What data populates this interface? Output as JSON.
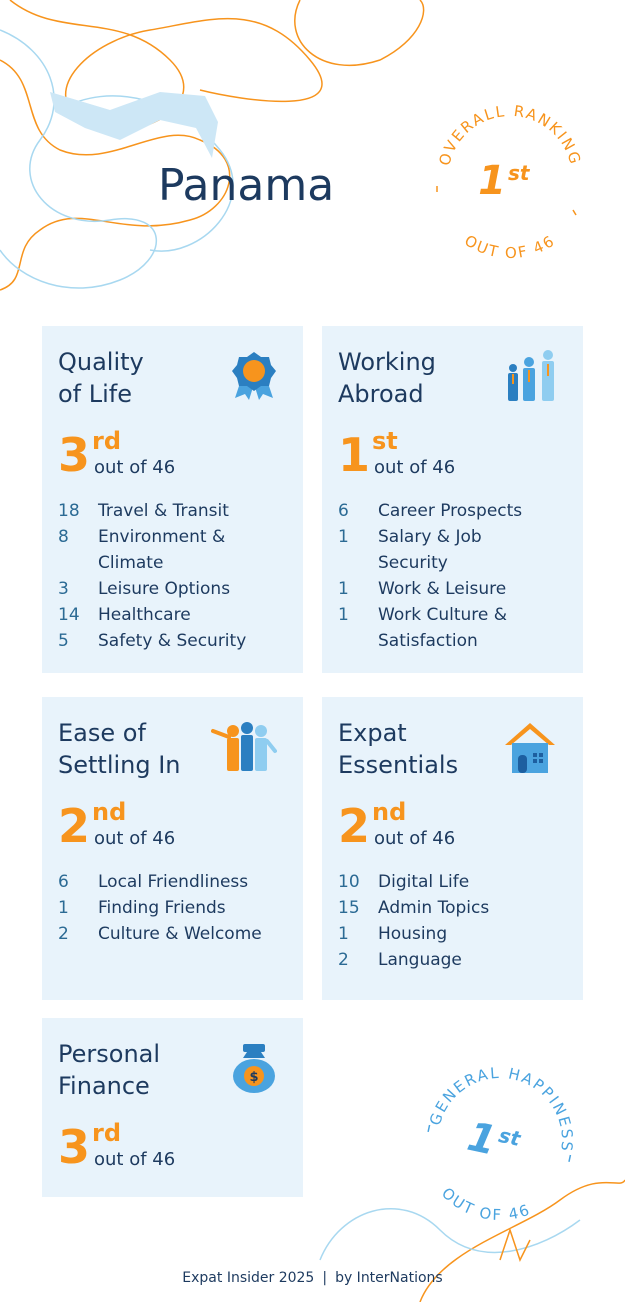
{
  "header": {
    "country": "Panama"
  },
  "overall": {
    "caption_top": "OVERALL RANKING",
    "rank": 1,
    "suffix": "st",
    "caption_bottom": "OUT OF 46"
  },
  "cards": [
    {
      "title": [
        "Quality",
        "of Life"
      ],
      "rank": 3,
      "suffix": "rd",
      "out_of": "out of 46",
      "items": [
        {
          "rank": 18,
          "label": "Travel & Transit"
        },
        {
          "rank": 8,
          "label": "Environment & Climate"
        },
        {
          "rank": 3,
          "label": "Leisure Options"
        },
        {
          "rank": 14,
          "label": "Healthcare"
        },
        {
          "rank": 5,
          "label": "Safety & Security"
        }
      ]
    },
    {
      "title": [
        "Working",
        "Abroad"
      ],
      "rank": 1,
      "suffix": "st",
      "out_of": "out of 46",
      "items": [
        {
          "rank": 6,
          "label": "Career Prospects"
        },
        {
          "rank": 1,
          "label": "Salary & Job Security"
        },
        {
          "rank": 1,
          "label": "Work & Leisure"
        },
        {
          "rank": 1,
          "label": "Work Culture & Satisfaction"
        }
      ]
    },
    {
      "title": [
        "Ease of",
        "Settling In"
      ],
      "rank": 2,
      "suffix": "nd",
      "out_of": "out of 46",
      "items": [
        {
          "rank": 6,
          "label": "Local Friendliness"
        },
        {
          "rank": 1,
          "label": "Finding Friends"
        },
        {
          "rank": 2,
          "label": "Culture & Welcome"
        }
      ]
    },
    {
      "title": [
        "Expat",
        "Essentials"
      ],
      "rank": 2,
      "suffix": "nd",
      "out_of": "out of 46",
      "items": [
        {
          "rank": 10,
          "label": "Digital Life"
        },
        {
          "rank": 15,
          "label": "Admin Topics"
        },
        {
          "rank": 1,
          "label": "Housing"
        },
        {
          "rank": 2,
          "label": "Language"
        }
      ]
    },
    {
      "title": [
        "Personal",
        "Finance"
      ],
      "rank": 3,
      "suffix": "rd",
      "out_of": "out of 46",
      "items": []
    }
  ],
  "happiness": {
    "caption_top": "GENERAL HAPPINESS",
    "rank": 1,
    "suffix": "st",
    "caption_bottom": "OUT OF 46"
  },
  "footer": {
    "source": "Expat Insider 2025",
    "separator": "|",
    "by": "by InterNations"
  }
}
